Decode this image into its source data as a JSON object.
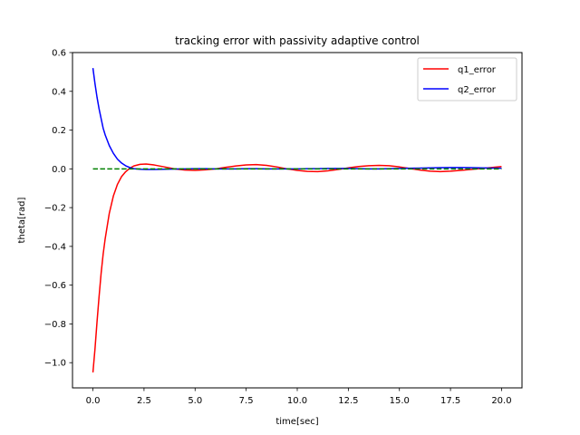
{
  "chart_data": {
    "type": "line",
    "title": "tracking error with passivity adaptive control",
    "xlabel": "time[sec]",
    "ylabel": "theta[rad]",
    "xlim": [
      -1.0,
      21.0
    ],
    "ylim": [
      -1.13,
      0.6
    ],
    "xticks": [
      0.0,
      2.5,
      5.0,
      7.5,
      10.0,
      12.5,
      15.0,
      17.5,
      20.0
    ],
    "xtick_labels": [
      "0.0",
      "2.5",
      "5.0",
      "7.5",
      "10.0",
      "12.5",
      "15.0",
      "17.5",
      "20.0"
    ],
    "yticks": [
      -1.0,
      -0.8,
      -0.6,
      -0.4,
      -0.2,
      0.0,
      0.2,
      0.4,
      0.6
    ],
    "ytick_labels": [
      "−1.0",
      "−0.8",
      "−0.6",
      "−0.4",
      "−0.2",
      "0.0",
      "0.2",
      "0.4",
      "0.6"
    ],
    "grid": false,
    "legend_position": "top-right",
    "series": [
      {
        "name": "q1_error",
        "color": "#ff0000",
        "style": "solid",
        "x": [
          0.0,
          0.1,
          0.2,
          0.3,
          0.4,
          0.5,
          0.6,
          0.8,
          1.0,
          1.2,
          1.4,
          1.6,
          1.8,
          2.0,
          2.3,
          2.6,
          3.0,
          3.5,
          4.0,
          4.5,
          5.0,
          5.5,
          6.0,
          6.5,
          7.0,
          7.5,
          8.0,
          8.5,
          9.0,
          9.5,
          10.0,
          10.5,
          11.0,
          11.5,
          12.0,
          12.5,
          13.0,
          13.5,
          14.0,
          14.5,
          15.0,
          15.5,
          16.0,
          16.5,
          17.0,
          17.5,
          18.0,
          18.5,
          19.0,
          19.5,
          20.0
        ],
        "y": [
          -1.05,
          -0.93,
          -0.79,
          -0.66,
          -0.54,
          -0.44,
          -0.36,
          -0.23,
          -0.14,
          -0.08,
          -0.04,
          -0.015,
          0.003,
          0.015,
          0.023,
          0.025,
          0.02,
          0.01,
          0.0,
          -0.006,
          -0.008,
          -0.005,
          0.0,
          0.008,
          0.015,
          0.02,
          0.022,
          0.018,
          0.01,
          0.0,
          -0.008,
          -0.013,
          -0.014,
          -0.01,
          -0.003,
          0.005,
          0.012,
          0.016,
          0.018,
          0.016,
          0.01,
          0.002,
          -0.006,
          -0.012,
          -0.014,
          -0.012,
          -0.008,
          -0.003,
          0.002,
          0.007,
          0.012
        ]
      },
      {
        "name": "q2_error",
        "color": "#0000ff",
        "style": "solid",
        "x": [
          0.0,
          0.1,
          0.2,
          0.3,
          0.4,
          0.5,
          0.6,
          0.8,
          1.0,
          1.2,
          1.4,
          1.6,
          1.8,
          2.0,
          2.3,
          2.6,
          3.0,
          3.5,
          4.0,
          4.5,
          5.0,
          5.5,
          6.0,
          6.5,
          7.0,
          7.5,
          8.0,
          8.5,
          9.0,
          9.5,
          10.0,
          10.5,
          11.0,
          11.5,
          12.0,
          12.5,
          13.0,
          13.5,
          14.0,
          14.5,
          15.0,
          15.5,
          16.0,
          16.5,
          17.0,
          17.5,
          18.0,
          18.5,
          19.0,
          19.5,
          20.0
        ],
        "y": [
          0.52,
          0.44,
          0.37,
          0.31,
          0.26,
          0.21,
          0.175,
          0.12,
          0.08,
          0.05,
          0.03,
          0.016,
          0.007,
          0.001,
          -0.002,
          -0.003,
          -0.003,
          -0.002,
          -0.001,
          0.0,
          0.001,
          0.001,
          0.0,
          0.0,
          0.0,
          0.001,
          0.001,
          0.0,
          0.0,
          0.0,
          0.0,
          0.001,
          0.001,
          0.002,
          0.002,
          0.002,
          0.001,
          0.0,
          0.0,
          0.001,
          0.002,
          0.003,
          0.004,
          0.005,
          0.006,
          0.007,
          0.007,
          0.006,
          0.005,
          0.004,
          0.003
        ]
      },
      {
        "color": "#008000",
        "style": "dashed",
        "x": [
          0.0,
          20.0
        ],
        "y": [
          0.0,
          0.0
        ]
      }
    ]
  }
}
